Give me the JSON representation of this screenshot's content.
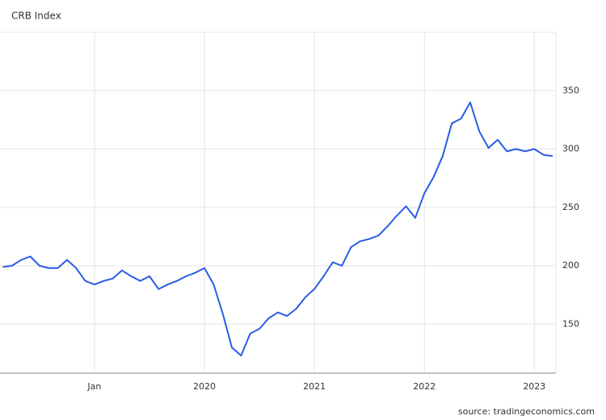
{
  "chart_data": {
    "type": "line",
    "title": "CRB Index",
    "source": "source: tradingeconomics.com",
    "categories": [
      null,
      null,
      null,
      null,
      null,
      null,
      null,
      null,
      null,
      null,
      "Jan",
      null,
      null,
      null,
      null,
      null,
      null,
      null,
      null,
      null,
      null,
      null,
      "2020",
      null,
      null,
      null,
      null,
      null,
      null,
      null,
      null,
      null,
      null,
      null,
      "2021",
      null,
      null,
      null,
      null,
      null,
      null,
      null,
      null,
      null,
      null,
      null,
      "2022",
      null,
      null,
      null,
      null,
      null,
      null,
      null,
      null,
      null,
      null,
      null,
      "2023",
      null,
      null
    ],
    "series": [
      {
        "name": "CRB Index",
        "color": "#2b5ce6",
        "values": [
          199,
          200,
          205,
          208,
          200,
          198,
          198,
          205,
          198,
          187,
          184,
          187,
          189,
          196,
          191,
          187,
          191,
          180,
          184,
          187,
          191,
          194,
          198,
          184,
          159,
          130,
          123,
          142,
          146,
          155,
          160,
          157,
          163,
          173,
          180,
          191,
          203,
          200,
          216,
          221,
          223,
          226,
          234,
          243,
          251,
          241,
          262,
          276,
          294,
          322,
          326,
          340,
          315,
          301,
          308,
          298,
          300,
          298,
          300,
          295,
          294
        ]
      }
    ],
    "ylim": [
      108,
      400
    ],
    "yticks": [
      150,
      200,
      250,
      300,
      350
    ],
    "grid": true
  }
}
